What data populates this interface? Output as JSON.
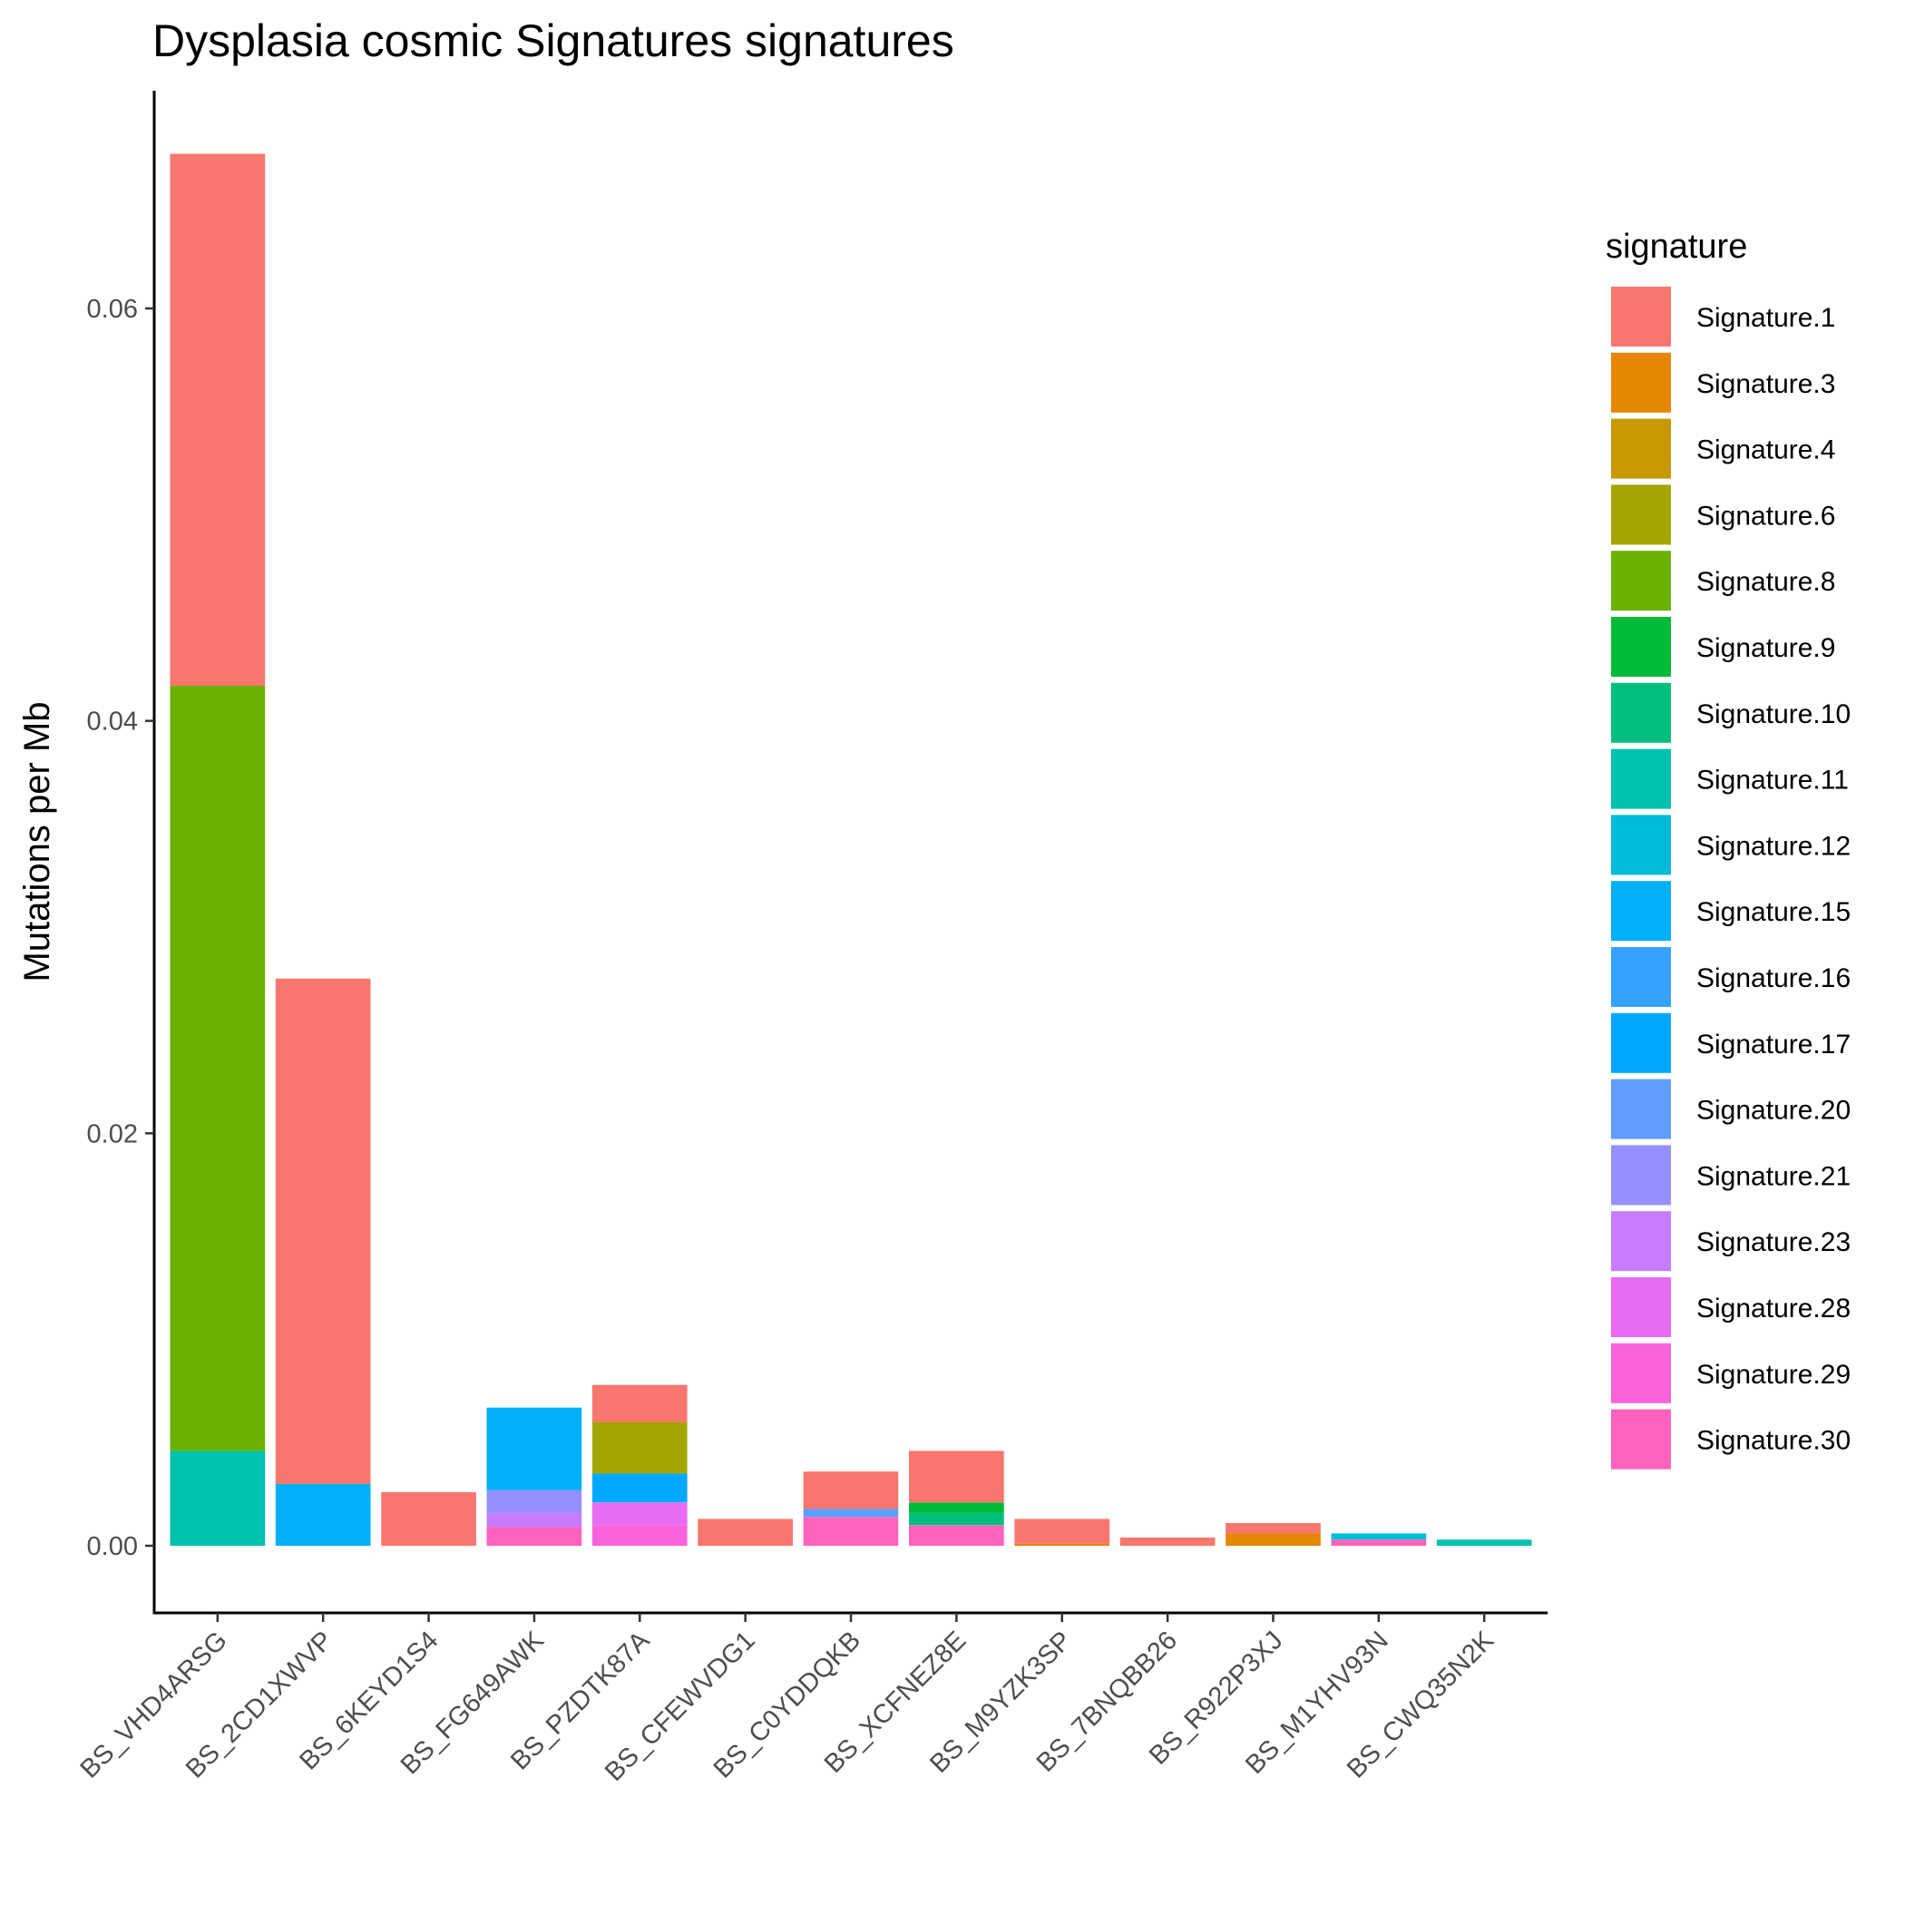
{
  "chart_data": {
    "type": "bar",
    "stacked": true,
    "title": "Dysplasia cosmic Signatures signatures",
    "xlabel": "",
    "ylabel": "Mutations per Mb",
    "ylim": [
      -0.003,
      0.07
    ],
    "yticks": [
      0.0,
      0.02,
      0.04,
      0.06
    ],
    "ytick_labels": [
      "0.00",
      "0.02",
      "0.04",
      "0.06"
    ],
    "grid": false,
    "legend_title": "signature",
    "legend_position": "right",
    "categories": [
      "BS_VHD4ARSG",
      "BS_2CD1XWVP",
      "BS_6KEYD1S4",
      "BS_FG649AWK",
      "BS_PZDTK87A",
      "BS_CFEWVDG1",
      "BS_C0YDDQKB",
      "BS_XCFNEZ8E",
      "BS_M9YZK3SP",
      "BS_7BNQBB26",
      "BS_R922P3XJ",
      "BS_M1YHV93N",
      "BS_CWQ35N2K"
    ],
    "series": [
      {
        "name": "Signature.1",
        "color": "#F8766D",
        "values": [
          0.0258,
          0.0245,
          0.0026,
          0,
          0.0018,
          0.0013,
          0.0018,
          0.0025,
          0.0012,
          0.0004,
          0.0005,
          0,
          0
        ]
      },
      {
        "name": "Signature.3",
        "color": "#E58700",
        "values": [
          0,
          0,
          0,
          0,
          0,
          0,
          0,
          0,
          0.0001,
          0,
          0.0006,
          0,
          0
        ]
      },
      {
        "name": "Signature.4",
        "color": "#C99800",
        "values": [
          0,
          0,
          0,
          0,
          0,
          0,
          0,
          0,
          0,
          0,
          0,
          0,
          0
        ]
      },
      {
        "name": "Signature.6",
        "color": "#A3A500",
        "values": [
          0,
          0,
          0,
          0,
          0.0025,
          0,
          0,
          0,
          0,
          0,
          0,
          0,
          0
        ]
      },
      {
        "name": "Signature.8",
        "color": "#6BB100",
        "values": [
          0.0371,
          0,
          0,
          0,
          0,
          0,
          0,
          0,
          0,
          0,
          0,
          0,
          0
        ]
      },
      {
        "name": "Signature.9",
        "color": "#00BA38",
        "values": [
          0,
          0,
          0,
          0,
          0,
          0,
          0,
          0.0005,
          0,
          0,
          0,
          0,
          0
        ]
      },
      {
        "name": "Signature.10",
        "color": "#00BF7D",
        "values": [
          0,
          0,
          0,
          0,
          0,
          0,
          0,
          0.0006,
          0,
          0,
          0,
          0,
          0
        ]
      },
      {
        "name": "Signature.11",
        "color": "#00C0AF",
        "values": [
          0.0046,
          0,
          0,
          0,
          0,
          0,
          0,
          0,
          0,
          0,
          0,
          0,
          0.0003
        ]
      },
      {
        "name": "Signature.12",
        "color": "#00BCD8",
        "values": [
          0,
          0,
          0,
          0,
          0,
          0,
          0,
          0,
          0,
          0,
          0,
          0.0003,
          0
        ]
      },
      {
        "name": "Signature.15",
        "color": "#00B0F6",
        "values": [
          0,
          0.003,
          0,
          0.004,
          0,
          0,
          0,
          0,
          0,
          0,
          0,
          0,
          0
        ]
      },
      {
        "name": "Signature.16",
        "color": "#35A2FF",
        "values": [
          0,
          0,
          0,
          0,
          0,
          0,
          0,
          0,
          0,
          0,
          0,
          0,
          0
        ]
      },
      {
        "name": "Signature.17",
        "color": "#00A9FF",
        "values": [
          0,
          0,
          0,
          0,
          0.0014,
          0,
          0,
          0,
          0,
          0,
          0,
          0,
          0
        ]
      },
      {
        "name": "Signature.20",
        "color": "#619CFF",
        "values": [
          0,
          0,
          0,
          0,
          0,
          0,
          0.0004,
          0,
          0,
          0,
          0,
          0,
          0
        ]
      },
      {
        "name": "Signature.21",
        "color": "#9590FF",
        "values": [
          0,
          0,
          0,
          0.0011,
          0,
          0,
          0,
          0,
          0,
          0,
          0,
          0,
          0
        ]
      },
      {
        "name": "Signature.23",
        "color": "#C77CFF",
        "values": [
          0,
          0,
          0,
          0.0007,
          0,
          0,
          0,
          0,
          0,
          0,
          0,
          0,
          0
        ]
      },
      {
        "name": "Signature.28",
        "color": "#E76BF3",
        "values": [
          0,
          0,
          0,
          0,
          0.0011,
          0,
          0,
          0,
          0,
          0,
          0,
          0,
          0
        ]
      },
      {
        "name": "Signature.29",
        "color": "#FA62DB",
        "values": [
          0,
          0,
          0,
          0,
          0.001,
          0,
          0,
          0,
          0,
          0,
          0,
          0,
          0
        ]
      },
      {
        "name": "Signature.30",
        "color": "#FF62BC",
        "values": [
          0,
          0,
          0,
          0.0009,
          0,
          0,
          0.0014,
          0.001,
          0,
          0,
          0,
          0.0003,
          0
        ]
      }
    ]
  }
}
